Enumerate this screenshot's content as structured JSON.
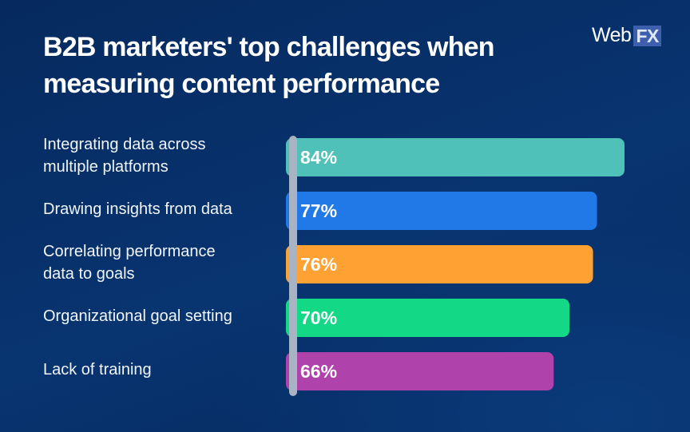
{
  "chart_data": {
    "type": "bar",
    "orientation": "horizontal",
    "title": "B2B marketers' top challenges when measuring content performance",
    "title_lines": [
      "B2B marketers' top challenges when",
      "measuring content performance"
    ],
    "categories": [
      "Integrating data across\nmultiple platforms",
      "Drawing insights from data",
      "Correlating performance\ndata to goals",
      "Organizational goal setting",
      "Lack of training"
    ],
    "values": [
      84,
      77,
      76,
      70,
      66
    ],
    "data_labels": [
      "84%",
      "77%",
      "76%",
      "70%",
      "66%"
    ],
    "colors": [
      "#4fc1b8",
      "#2079e6",
      "#ffa133",
      "#13d886",
      "#b043ab"
    ],
    "xlim": [
      0,
      84
    ],
    "grid": false,
    "axis_color": "#a8b4c4"
  },
  "brand": {
    "logo_web": "Web",
    "logo_fx": "FX"
  }
}
